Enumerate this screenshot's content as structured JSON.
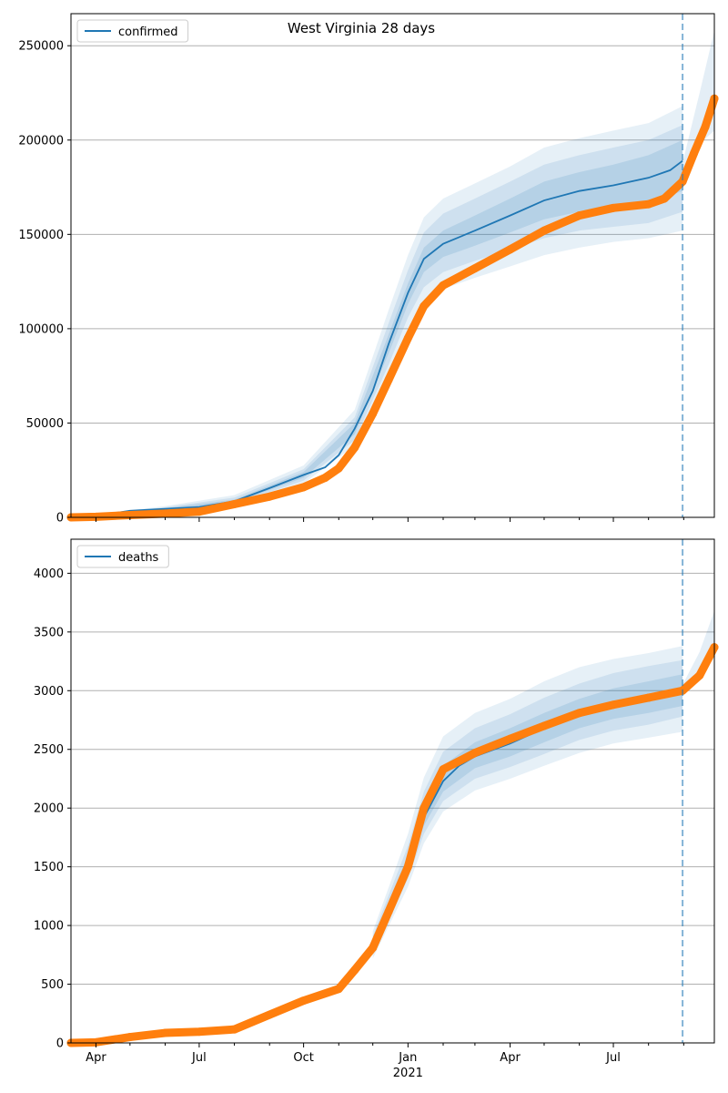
{
  "title": "West Virginia 28 days",
  "colors": {
    "model": "#1f77b4",
    "observed": "#ff7f0e",
    "grid": "#b0b0b0",
    "band": "#1f77b4"
  },
  "chart_data": [
    {
      "type": "line",
      "panel": "confirmed",
      "legend": [
        "confirmed"
      ],
      "legend_position": "upper-left",
      "grid": "horizontal",
      "xlim": [
        "2020-03-10",
        "2021-09-28"
      ],
      "ylim": [
        0,
        267000
      ],
      "yticks": [
        0,
        50000,
        100000,
        150000,
        200000,
        250000
      ],
      "ytick_labels": [
        "0",
        "50000",
        "100000",
        "150000",
        "200000",
        "250000"
      ],
      "forecast_start": "2021-08-31",
      "model_median": [
        [
          "2020-03-10",
          0
        ],
        [
          "2020-04-01",
          800
        ],
        [
          "2020-05-01",
          3500
        ],
        [
          "2020-06-01",
          4500
        ],
        [
          "2020-07-01",
          5500
        ],
        [
          "2020-08-01",
          8500
        ],
        [
          "2020-09-01",
          15500
        ],
        [
          "2020-10-01",
          22500
        ],
        [
          "2020-10-20",
          26500
        ],
        [
          "2020-11-01",
          33000
        ],
        [
          "2020-11-15",
          47000
        ],
        [
          "2020-12-01",
          67000
        ],
        [
          "2020-12-15",
          92000
        ],
        [
          "2021-01-01",
          119000
        ],
        [
          "2021-01-15",
          137000
        ],
        [
          "2021-02-01",
          145000
        ],
        [
          "2021-03-01",
          152000
        ],
        [
          "2021-04-01",
          160000
        ],
        [
          "2021-05-01",
          168000
        ],
        [
          "2021-06-01",
          173000
        ],
        [
          "2021-07-01",
          176000
        ],
        [
          "2021-08-01",
          180000
        ],
        [
          "2021-08-20",
          184000
        ],
        [
          "2021-08-31",
          189000
        ]
      ],
      "band_inner": [
        [
          "2020-03-10",
          0,
          0
        ],
        [
          "2020-06-01",
          4100,
          4900
        ],
        [
          "2020-08-01",
          7800,
          9400
        ],
        [
          "2020-10-01",
          21000,
          24000
        ],
        [
          "2020-11-15",
          44000,
          50000
        ],
        [
          "2020-12-15",
          87000,
          97000
        ],
        [
          "2021-01-01",
          113000,
          124000
        ],
        [
          "2021-01-15",
          130000,
          143000
        ],
        [
          "2021-02-01",
          138000,
          152000
        ],
        [
          "2021-03-01",
          144000,
          160000
        ],
        [
          "2021-04-01",
          151000,
          169000
        ],
        [
          "2021-05-01",
          158000,
          178000
        ],
        [
          "2021-06-01",
          162000,
          183000
        ],
        [
          "2021-07-01",
          164000,
          187000
        ],
        [
          "2021-08-01",
          167000,
          192000
        ],
        [
          "2021-08-31",
          173000,
          200000
        ]
      ],
      "band_middle": [
        [
          "2020-03-10",
          0,
          0
        ],
        [
          "2020-06-01",
          3700,
          5400
        ],
        [
          "2020-08-01",
          7000,
          10500
        ],
        [
          "2020-10-01",
          19500,
          25500
        ],
        [
          "2020-11-15",
          41000,
          53000
        ],
        [
          "2020-12-15",
          81000,
          103000
        ],
        [
          "2021-01-01",
          106000,
          131000
        ],
        [
          "2021-01-15",
          122000,
          151000
        ],
        [
          "2021-02-01",
          130000,
          161000
        ],
        [
          "2021-03-01",
          136000,
          169000
        ],
        [
          "2021-04-01",
          142000,
          178000
        ],
        [
          "2021-05-01",
          148000,
          187000
        ],
        [
          "2021-06-01",
          152000,
          192000
        ],
        [
          "2021-07-01",
          154000,
          196000
        ],
        [
          "2021-08-01",
          156000,
          200000
        ],
        [
          "2021-08-31",
          162000,
          208000
        ]
      ],
      "band_outer": [
        [
          "2020-03-10",
          0,
          0
        ],
        [
          "2020-06-01",
          3300,
          6000
        ],
        [
          "2020-08-01",
          6200,
          11800
        ],
        [
          "2020-10-01",
          18000,
          27500
        ],
        [
          "2020-11-15",
          38000,
          57000
        ],
        [
          "2020-12-15",
          74000,
          110000
        ],
        [
          "2021-01-01",
          98000,
          139000
        ],
        [
          "2021-01-15",
          113000,
          159000
        ],
        [
          "2021-02-01",
          121000,
          169000
        ],
        [
          "2021-03-01",
          127000,
          177000
        ],
        [
          "2021-04-01",
          133000,
          186000
        ],
        [
          "2021-05-01",
          139000,
          196000
        ],
        [
          "2021-06-01",
          143000,
          201000
        ],
        [
          "2021-07-01",
          146000,
          205000
        ],
        [
          "2021-08-01",
          148000,
          209000
        ],
        [
          "2021-08-31",
          152000,
          218000
        ]
      ],
      "forecast_band": [
        [
          "2021-08-31",
          178000,
          188000
        ],
        [
          "2021-09-15",
          198000,
          225000
        ],
        [
          "2021-09-28",
          205000,
          258000
        ]
      ],
      "observed": [
        [
          "2020-03-10",
          0
        ],
        [
          "2020-04-01",
          300
        ],
        [
          "2020-05-01",
          1200
        ],
        [
          "2020-06-01",
          2000
        ],
        [
          "2020-07-01",
          3000
        ],
        [
          "2020-08-01",
          7000
        ],
        [
          "2020-09-01",
          11000
        ],
        [
          "2020-10-01",
          16000
        ],
        [
          "2020-10-20",
          21000
        ],
        [
          "2020-11-01",
          26000
        ],
        [
          "2020-11-15",
          37000
        ],
        [
          "2020-12-01",
          55000
        ],
        [
          "2020-12-15",
          73000
        ],
        [
          "2021-01-01",
          95000
        ],
        [
          "2021-01-15",
          112000
        ],
        [
          "2021-02-01",
          123000
        ],
        [
          "2021-03-01",
          132000
        ],
        [
          "2021-04-01",
          142000
        ],
        [
          "2021-05-01",
          152000
        ],
        [
          "2021-06-01",
          160000
        ],
        [
          "2021-07-01",
          164000
        ],
        [
          "2021-08-01",
          166000
        ],
        [
          "2021-08-15",
          169000
        ],
        [
          "2021-08-31",
          178000
        ],
        [
          "2021-09-10",
          193000
        ],
        [
          "2021-09-20",
          207000
        ],
        [
          "2021-09-28",
          222000
        ]
      ]
    },
    {
      "type": "line",
      "panel": "deaths",
      "legend": [
        "deaths"
      ],
      "legend_position": "upper-left",
      "grid": "horizontal",
      "xlim": [
        "2020-03-10",
        "2021-09-28"
      ],
      "ylim": [
        0,
        4290
      ],
      "yticks": [
        0,
        500,
        1000,
        1500,
        2000,
        2500,
        3000,
        3500,
        4000
      ],
      "ytick_labels": [
        "0",
        "500",
        "1000",
        "1500",
        "2000",
        "2500",
        "3000",
        "3500",
        "4000"
      ],
      "xticks": [
        "2020-04-01",
        "2020-07-01",
        "2020-10-01",
        "2021-01-01",
        "2021-04-01",
        "2021-07-01"
      ],
      "xtick_labels": [
        "Apr",
        "Jul",
        "Oct",
        "Jan",
        "Apr",
        "Jul"
      ],
      "xlabel_year": "2021",
      "forecast_start": "2021-08-31",
      "model_median": [
        [
          "2021-01-01",
          1500
        ],
        [
          "2021-01-15",
          1920
        ],
        [
          "2021-02-01",
          2230
        ],
        [
          "2021-02-15",
          2360
        ],
        [
          "2021-03-01",
          2440
        ],
        [
          "2021-04-01",
          2550
        ],
        [
          "2021-05-01",
          2680
        ],
        [
          "2021-06-01",
          2800
        ],
        [
          "2021-07-01",
          2880
        ],
        [
          "2021-08-01",
          2940
        ],
        [
          "2021-08-31",
          3000
        ]
      ],
      "band_inner": [
        [
          "2020-12-01",
          790,
          880
        ],
        [
          "2021-01-01",
          1460,
          1600
        ],
        [
          "2021-01-15",
          1850,
          2040
        ],
        [
          "2021-02-01",
          2140,
          2360
        ],
        [
          "2021-03-01",
          2340,
          2560
        ],
        [
          "2021-04-01",
          2440,
          2680
        ],
        [
          "2021-05-01",
          2560,
          2810
        ],
        [
          "2021-06-01",
          2680,
          2930
        ],
        [
          "2021-07-01",
          2760,
          3020
        ],
        [
          "2021-08-01",
          2810,
          3080
        ],
        [
          "2021-08-31",
          2870,
          3140
        ]
      ],
      "band_middle": [
        [
          "2020-12-01",
          760,
          910
        ],
        [
          "2021-01-01",
          1400,
          1680
        ],
        [
          "2021-01-15",
          1780,
          2140
        ],
        [
          "2021-02-01",
          2060,
          2480
        ],
        [
          "2021-03-01",
          2250,
          2680
        ],
        [
          "2021-04-01",
          2350,
          2800
        ],
        [
          "2021-05-01",
          2460,
          2940
        ],
        [
          "2021-06-01",
          2580,
          3060
        ],
        [
          "2021-07-01",
          2660,
          3150
        ],
        [
          "2021-08-01",
          2710,
          3210
        ],
        [
          "2021-08-31",
          2780,
          3260
        ]
      ],
      "band_outer": [
        [
          "2020-12-01",
          720,
          950
        ],
        [
          "2021-01-01",
          1330,
          1780
        ],
        [
          "2021-01-15",
          1700,
          2260
        ],
        [
          "2021-02-01",
          1970,
          2610
        ],
        [
          "2021-03-01",
          2150,
          2810
        ],
        [
          "2021-04-01",
          2250,
          2930
        ],
        [
          "2021-05-01",
          2360,
          3080
        ],
        [
          "2021-06-01",
          2470,
          3200
        ],
        [
          "2021-07-01",
          2550,
          3270
        ],
        [
          "2021-08-01",
          2600,
          3320
        ],
        [
          "2021-08-31",
          2650,
          3380
        ]
      ],
      "forecast_band": [
        [
          "2021-08-31",
          2980,
          3050
        ],
        [
          "2021-09-15",
          3140,
          3330
        ],
        [
          "2021-09-28",
          3280,
          3680
        ]
      ],
      "observed": [
        [
          "2020-03-10",
          0
        ],
        [
          "2020-04-01",
          5
        ],
        [
          "2020-05-01",
          50
        ],
        [
          "2020-06-01",
          85
        ],
        [
          "2020-07-01",
          95
        ],
        [
          "2020-08-01",
          115
        ],
        [
          "2020-09-01",
          240
        ],
        [
          "2020-10-01",
          360
        ],
        [
          "2020-11-01",
          460
        ],
        [
          "2020-11-15",
          620
        ],
        [
          "2020-12-01",
          810
        ],
        [
          "2020-12-15",
          1120
        ],
        [
          "2021-01-01",
          1500
        ],
        [
          "2021-01-15",
          2000
        ],
        [
          "2021-02-01",
          2330
        ],
        [
          "2021-03-01",
          2470
        ],
        [
          "2021-04-01",
          2590
        ],
        [
          "2021-05-01",
          2700
        ],
        [
          "2021-06-01",
          2810
        ],
        [
          "2021-07-01",
          2880
        ],
        [
          "2021-08-01",
          2940
        ],
        [
          "2021-08-31",
          3000
        ],
        [
          "2021-09-15",
          3130
        ],
        [
          "2021-09-28",
          3370
        ]
      ]
    }
  ]
}
